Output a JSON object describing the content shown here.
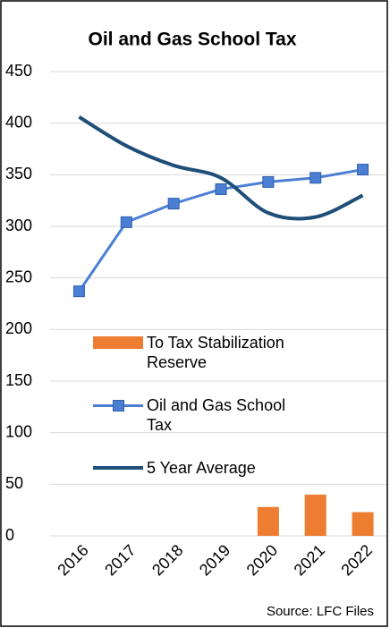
{
  "chart_data": {
    "type": "combo",
    "title": "Oil and Gas School Tax",
    "categories": [
      "2016",
      "2017",
      "2018",
      "2019",
      "2020",
      "2021",
      "2022"
    ],
    "series": [
      {
        "name": "To Tax Stabilization Reserve",
        "type": "bar",
        "color": "#ed7d31",
        "values": [
          null,
          null,
          null,
          null,
          28,
          40,
          23
        ]
      },
      {
        "name": "Oil and Gas School Tax",
        "type": "line",
        "marker": "square",
        "color": "#4a7fd4",
        "values": [
          237,
          304,
          322,
          336,
          343,
          347,
          355
        ]
      },
      {
        "name": "5 Year Average",
        "type": "line",
        "smooth": true,
        "color": "#1f4e79",
        "values": [
          406,
          378,
          359,
          347,
          313,
          309,
          330
        ]
      }
    ],
    "ylim": [
      0,
      450
    ],
    "yticks": [
      0,
      50,
      100,
      150,
      200,
      250,
      300,
      350,
      400,
      450
    ],
    "grid": true,
    "source": "Source: LFC Files"
  }
}
